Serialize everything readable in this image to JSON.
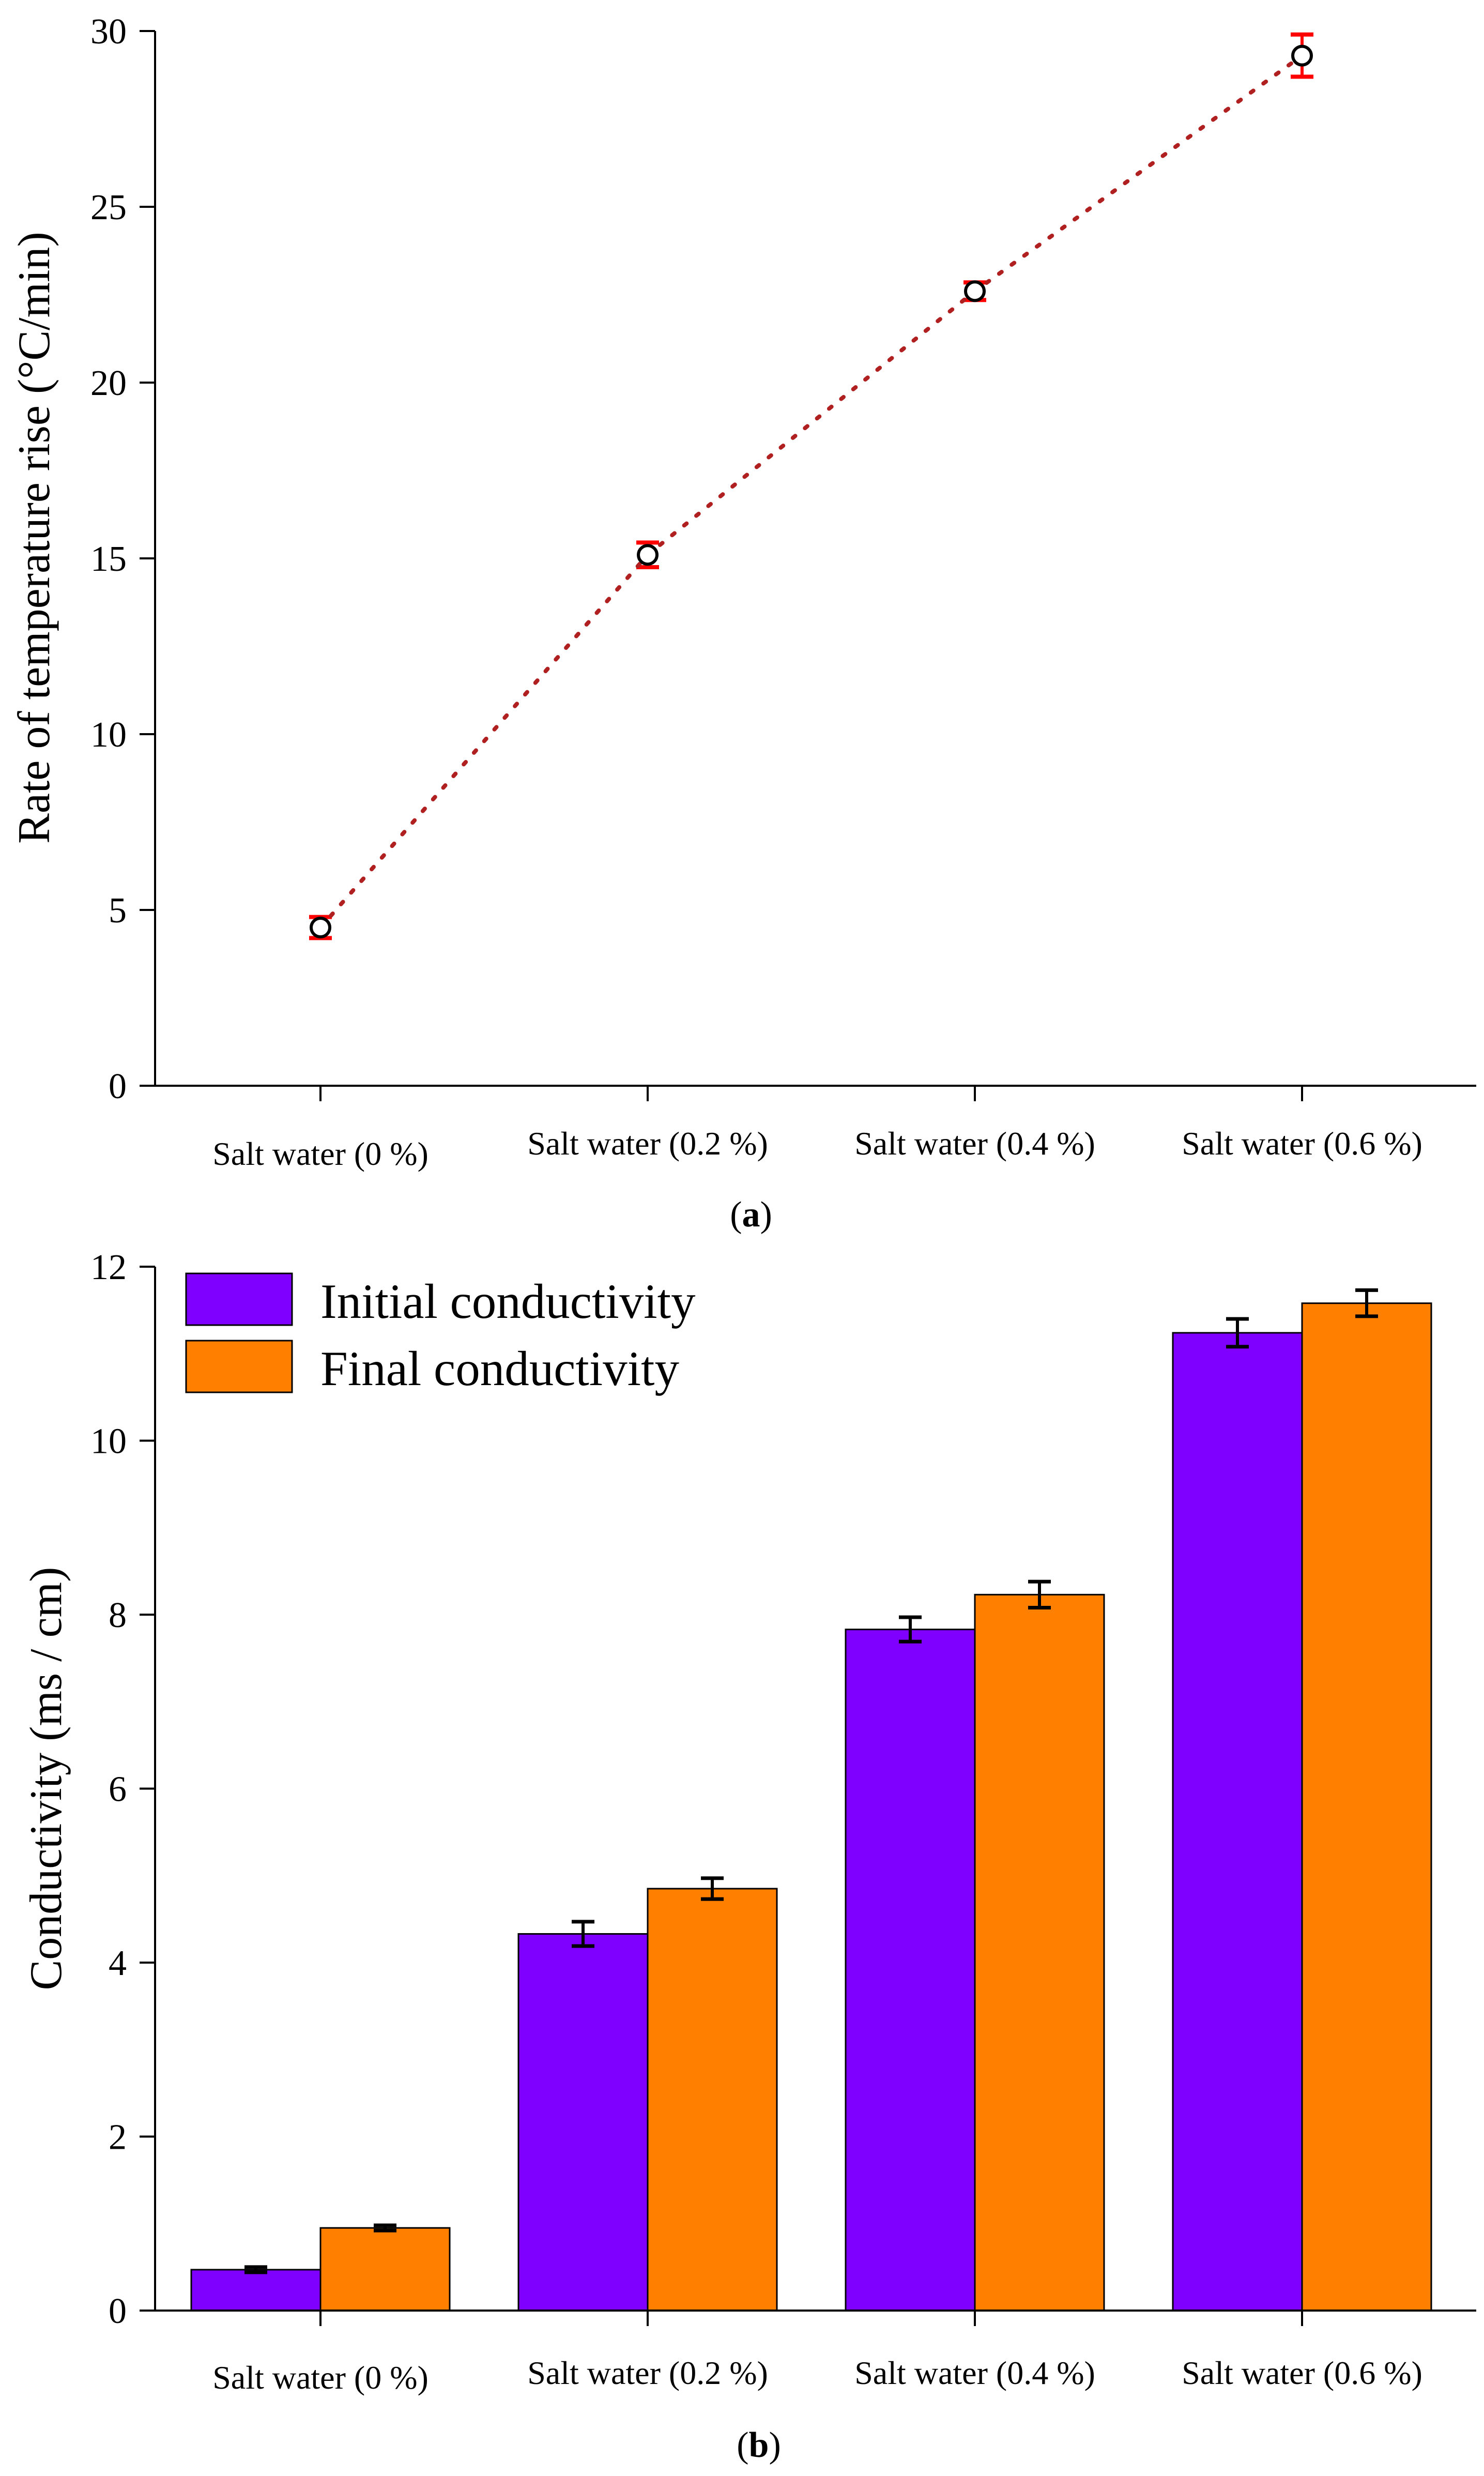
{
  "colors": {
    "initial": "#8000FF",
    "final": "#FF8000",
    "marker": "#000000",
    "errorbar_a": "#FF0000",
    "line_a": "#B02020",
    "axis": "#000000"
  },
  "chart_data": [
    {
      "id": "a",
      "type": "scatter",
      "panel_label": "a",
      "ylabel": "Rate of temperature rise (°C/min)",
      "xlabel": "",
      "categories": [
        "Salt water (0 %)",
        "Salt water (0.2 %)",
        "Salt water (0.4 %)",
        "Salt water (0.6 %)"
      ],
      "values": [
        4.5,
        15.1,
        22.6,
        29.3
      ],
      "errors": [
        0.3,
        0.35,
        0.25,
        0.6
      ],
      "ylim": [
        0,
        30
      ],
      "yticks": [
        0,
        5,
        10,
        15,
        20,
        25,
        30
      ],
      "grid": false,
      "legend": "none"
    },
    {
      "id": "b",
      "type": "bar",
      "panel_label": "b",
      "ylabel": "Conductivity (ms / cm)",
      "xlabel": "",
      "categories": [
        "Salt water (0 %)",
        "Salt water (0.2 %)",
        "Salt water (0.4 %)",
        "Salt water (0.6 %)"
      ],
      "series": [
        {
          "name": "Initial conductivity",
          "values": [
            0.47,
            4.33,
            7.83,
            11.24
          ],
          "errors": [
            0.03,
            0.14,
            0.14,
            0.16
          ]
        },
        {
          "name": "Final conductivity",
          "values": [
            0.95,
            4.85,
            8.23,
            11.58
          ],
          "errors": [
            0.03,
            0.12,
            0.15,
            0.15
          ]
        }
      ],
      "ylim": [
        0,
        12
      ],
      "yticks": [
        0,
        2,
        4,
        6,
        8,
        10,
        12
      ],
      "grid": false,
      "legend": "top-left"
    }
  ]
}
